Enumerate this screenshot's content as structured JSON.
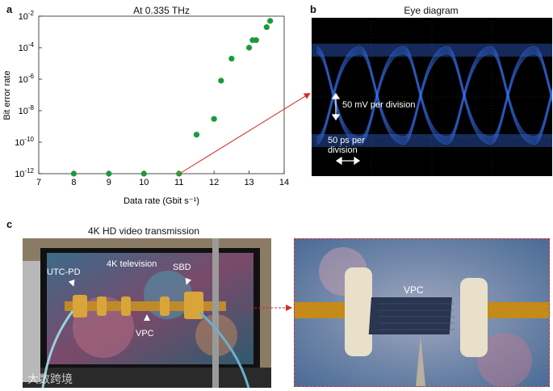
{
  "panel_a": {
    "letter": "a",
    "title": "At 0.335 THz",
    "chart_data": {
      "type": "scatter",
      "title": "At 0.335 THz",
      "xlabel": "Data rate (Gbit s⁻¹)",
      "ylabel": "Bit error rate",
      "xlim": [
        7,
        14
      ],
      "ylim_log10": [
        -12,
        -2
      ],
      "y_scale": "log",
      "x_ticks": [
        "7",
        "8",
        "9",
        "10",
        "11",
        "12",
        "13",
        "14"
      ],
      "y_ticks": [
        {
          "exp": "-12",
          "label": "10"
        },
        {
          "exp": "-10",
          "label": "10"
        },
        {
          "exp": "-8",
          "label": "10"
        },
        {
          "exp": "-6",
          "label": "10"
        },
        {
          "exp": "-4",
          "label": "10"
        },
        {
          "exp": "-2",
          "label": "10"
        }
      ],
      "x": [
        8,
        9,
        10,
        11,
        11.5,
        12,
        12.2,
        12.5,
        13,
        13.1,
        13.2,
        13.5,
        13.6
      ],
      "y": [
        1e-12,
        1e-12,
        1e-12,
        1e-12,
        3e-10,
        3e-09,
        8e-07,
        2e-05,
        0.0001,
        0.0003,
        0.0003,
        0.002,
        0.005
      ],
      "color": "#1a9a3c",
      "highlight_x": 11
    }
  },
  "panel_b": {
    "letter": "b",
    "title": "Eye diagram",
    "label_voltage": "50 mV per division",
    "label_time_1": "50 ps per",
    "label_time_2": "division",
    "trace_color": "#3c78ff"
  },
  "panel_c": {
    "letter": "c",
    "title": "4K HD video transmission",
    "labels": {
      "utc_pd": "UTC-PD",
      "television": "4K television",
      "sbd": "SBD",
      "vpc_left": "VPC",
      "vpc_right": "VPC"
    },
    "watermark": "大数跨境"
  },
  "colors": {
    "arrow_red": "#d42a2a",
    "frame_red": "#d42a2a"
  }
}
